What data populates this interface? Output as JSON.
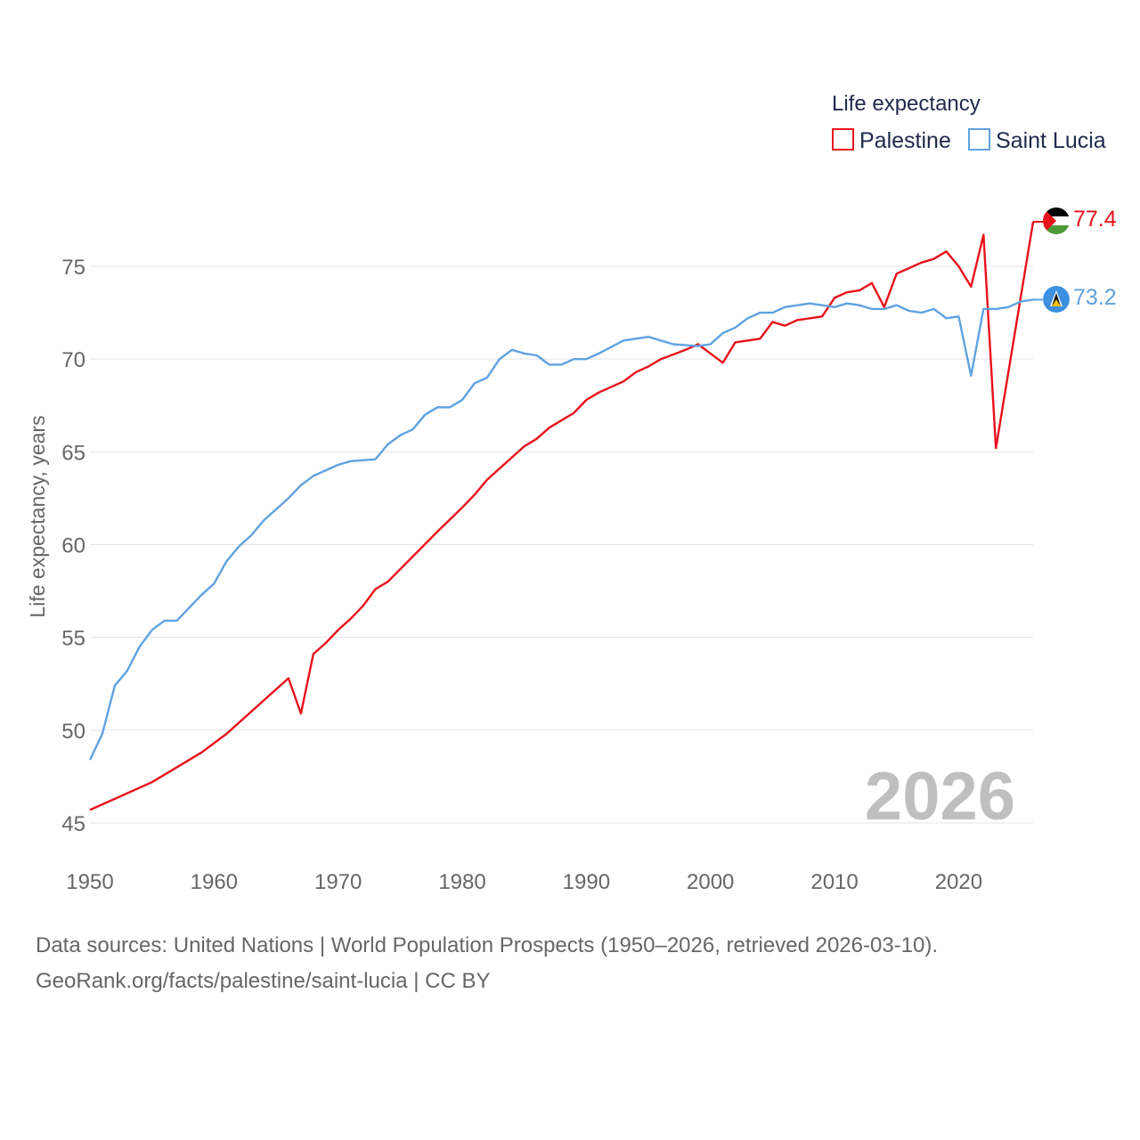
{
  "chart_data": {
    "type": "line",
    "legend_title": "Life expectancy",
    "ylabel": "Life expectancy, years",
    "year_label": "2026",
    "xlim": [
      1950,
      2026
    ],
    "ylim": [
      45,
      78
    ],
    "xticks": [
      1950,
      1960,
      1970,
      1980,
      1990,
      2000,
      2010,
      2020
    ],
    "yticks": [
      45,
      50,
      55,
      60,
      65,
      70,
      75
    ],
    "grid": true,
    "legend_position": "top-right",
    "series": [
      {
        "name": "Palestine",
        "color": "#e8111b",
        "flag": "palestine-flag-icon",
        "end_label": "77.4",
        "points": [
          [
            1950,
            45.7
          ],
          [
            1955,
            47.2
          ],
          [
            1959,
            48.8
          ],
          [
            1961,
            49.8
          ],
          [
            1966,
            52.8
          ],
          [
            1967,
            50.9
          ],
          [
            1968,
            54.1
          ],
          [
            1969,
            54.7
          ],
          [
            1970,
            55.4
          ],
          [
            1971,
            56.0
          ],
          [
            1972,
            56.7
          ],
          [
            1973,
            57.6
          ],
          [
            1974,
            58.0
          ],
          [
            1978,
            60.7
          ],
          [
            1980,
            62.0
          ],
          [
            1981,
            62.7
          ],
          [
            1982,
            63.5
          ],
          [
            1985,
            65.3
          ],
          [
            1986,
            65.7
          ],
          [
            1987,
            66.3
          ],
          [
            1989,
            67.1
          ],
          [
            1990,
            67.8
          ],
          [
            1991,
            68.2
          ],
          [
            1993,
            68.8
          ],
          [
            1994,
            69.3
          ],
          [
            1995,
            69.6
          ],
          [
            1996,
            70.0
          ],
          [
            1998,
            70.5
          ],
          [
            1999,
            70.8
          ],
          [
            2000,
            70.3
          ],
          [
            2001,
            69.8
          ],
          [
            2002,
            70.9
          ],
          [
            2004,
            71.1
          ],
          [
            2005,
            72.0
          ],
          [
            2006,
            71.8
          ],
          [
            2007,
            72.1
          ],
          [
            2009,
            72.3
          ],
          [
            2010,
            73.3
          ],
          [
            2011,
            73.6
          ],
          [
            2012,
            73.7
          ],
          [
            2013,
            74.1
          ],
          [
            2014,
            72.8
          ],
          [
            2015,
            74.6
          ],
          [
            2016,
            74.9
          ],
          [
            2017,
            75.2
          ],
          [
            2018,
            75.4
          ],
          [
            2019,
            75.8
          ],
          [
            2020,
            75.0
          ],
          [
            2021,
            73.9
          ],
          [
            2022,
            76.7
          ],
          [
            2023,
            65.2
          ],
          [
            2026,
            77.4
          ]
        ]
      },
      {
        "name": "Saint Lucia",
        "color": "#5fa2e0",
        "flag": "saint-lucia-flag-icon",
        "end_label": "73.2",
        "points": [
          [
            1950,
            48.4
          ],
          [
            1951,
            49.8
          ],
          [
            1952,
            52.4
          ],
          [
            1953,
            53.2
          ],
          [
            1954,
            54.5
          ],
          [
            1955,
            55.4
          ],
          [
            1956,
            55.9
          ],
          [
            1957,
            55.9
          ],
          [
            1958,
            56.6
          ],
          [
            1959,
            57.3
          ],
          [
            1960,
            57.9
          ],
          [
            1961,
            59.1
          ],
          [
            1962,
            59.9
          ],
          [
            1963,
            60.5
          ],
          [
            1964,
            61.3
          ],
          [
            1966,
            62.5
          ],
          [
            1967,
            63.2
          ],
          [
            1968,
            63.7
          ],
          [
            1970,
            64.3
          ],
          [
            1971,
            64.5
          ],
          [
            1973,
            64.6
          ],
          [
            1974,
            65.4
          ],
          [
            1975,
            65.9
          ],
          [
            1976,
            66.2
          ],
          [
            1977,
            67.0
          ],
          [
            1978,
            67.4
          ],
          [
            1979,
            67.4
          ],
          [
            1980,
            67.8
          ],
          [
            1981,
            68.7
          ],
          [
            1982,
            69.0
          ],
          [
            1983,
            70.0
          ],
          [
            1984,
            70.5
          ],
          [
            1985,
            70.3
          ],
          [
            1986,
            70.2
          ],
          [
            1987,
            69.7
          ],
          [
            1988,
            69.7
          ],
          [
            1989,
            70.0
          ],
          [
            1990,
            70.0
          ],
          [
            1991,
            70.3
          ],
          [
            1993,
            71.0
          ],
          [
            1995,
            71.2
          ],
          [
            1997,
            70.8
          ],
          [
            1999,
            70.7
          ],
          [
            2000,
            70.8
          ],
          [
            2001,
            71.4
          ],
          [
            2002,
            71.7
          ],
          [
            2003,
            72.2
          ],
          [
            2004,
            72.5
          ],
          [
            2005,
            72.5
          ],
          [
            2006,
            72.8
          ],
          [
            2008,
            73.0
          ],
          [
            2010,
            72.8
          ],
          [
            2011,
            73.0
          ],
          [
            2012,
            72.9
          ],
          [
            2013,
            72.7
          ],
          [
            2014,
            72.7
          ],
          [
            2015,
            72.9
          ],
          [
            2016,
            72.6
          ],
          [
            2017,
            72.5
          ],
          [
            2018,
            72.7
          ],
          [
            2019,
            72.2
          ],
          [
            2020,
            72.3
          ],
          [
            2021,
            69.1
          ],
          [
            2022,
            72.7
          ],
          [
            2023,
            72.7
          ],
          [
            2024,
            72.8
          ],
          [
            2025,
            73.1
          ],
          [
            2026,
            73.2
          ]
        ]
      }
    ]
  },
  "footer": {
    "sources": "Data sources: United Nations | World Population Prospects (1950–2026, retrieved 2026-03-10).",
    "credit": "GeoRank.org/facts/palestine/saint-lucia | CC BY"
  }
}
